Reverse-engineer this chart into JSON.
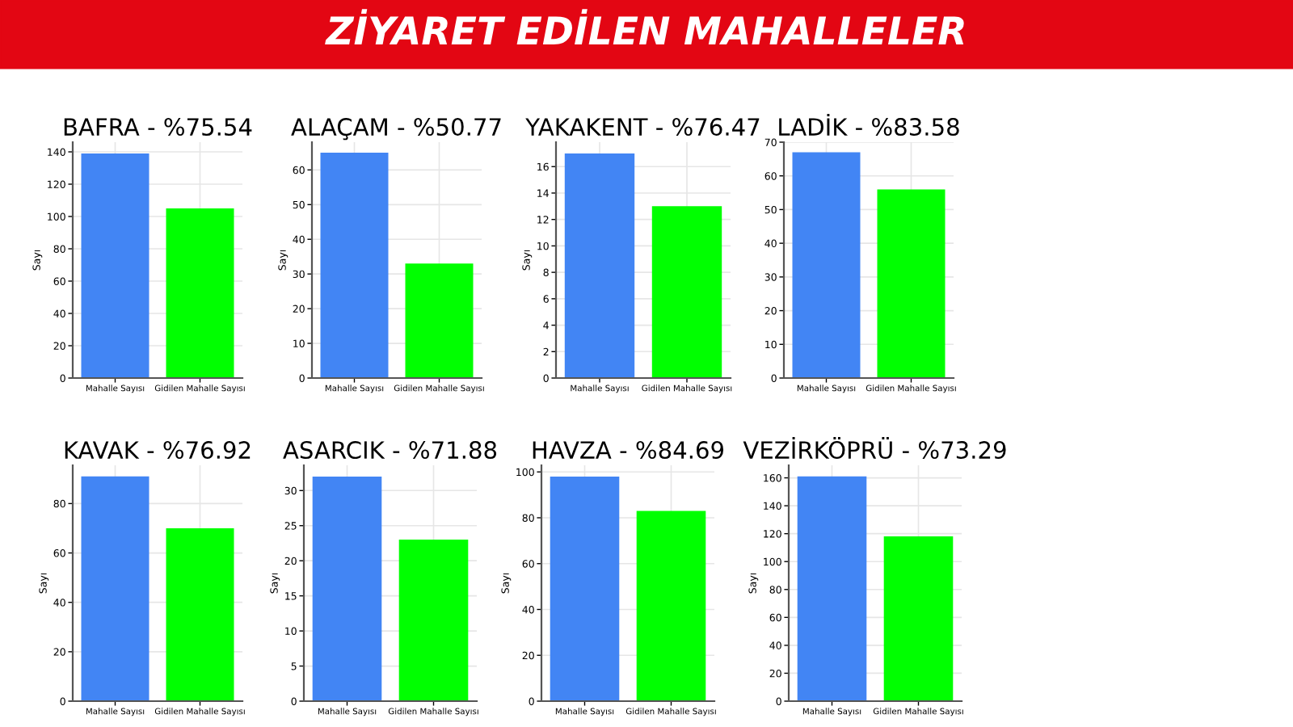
{
  "chart_data": [
    {
      "type": "bar",
      "title": "BAFRA - %75.54",
      "ylabel": "Sayı",
      "annotations": [
        "ZİYARET EDİLEN MAHALLELER"
      ],
      "categories": [
        "Mahalle Sayısı",
        "Gidilen Mahalle Sayısı"
      ],
      "values": [
        139,
        105
      ],
      "colors": [
        "#4285f4",
        "#00ff00"
      ],
      "ylim": [
        0,
        146
      ],
      "yticks": [
        0,
        20,
        40,
        60,
        80,
        100,
        120,
        140
      ],
      "grid": true
    },
    {
      "type": "bar",
      "title": "ALAÇAM - %50.77",
      "ylabel": "Sayı",
      "categories": [
        "Mahalle Sayısı",
        "Gidilen Mahalle Sayısı"
      ],
      "values": [
        65,
        33
      ],
      "colors": [
        "#4285f4",
        "#00ff00"
      ],
      "ylim": [
        0,
        68
      ],
      "yticks": [
        0,
        10,
        20,
        30,
        40,
        50,
        60
      ],
      "grid": true
    },
    {
      "type": "bar",
      "title": "YAKAKENT - %76.47",
      "ylabel": "Sayı",
      "categories": [
        "Mahalle Sayısı",
        "Gidilen Mahalle Sayısı"
      ],
      "values": [
        17,
        13
      ],
      "colors": [
        "#4285f4",
        "#00ff00"
      ],
      "ylim": [
        0,
        17.85
      ],
      "yticks": [
        0,
        2,
        4,
        6,
        8,
        10,
        12,
        14,
        16
      ],
      "grid": true
    },
    {
      "type": "bar",
      "title": "LADİK - %83.58",
      "categories": [
        "Mahalle Sayısı",
        "Gidilen Mahalle Sayısı"
      ],
      "values": [
        67,
        56
      ],
      "colors": [
        "#4285f4",
        "#00ff00"
      ],
      "ylim": [
        0,
        70
      ],
      "yticks": [
        0,
        10,
        20,
        30,
        40,
        50,
        60,
        70
      ],
      "grid": true
    },
    {
      "type": "bar",
      "title": "KAVAK - %76.92",
      "ylabel": "Sayı",
      "categories": [
        "Mahalle Sayısı",
        "Gidilen Mahalle Sayısı"
      ],
      "values": [
        91,
        70
      ],
      "colors": [
        "#4285f4",
        "#00ff00"
      ],
      "ylim": [
        0,
        95.5
      ],
      "yticks": [
        0,
        20,
        40,
        60,
        80
      ],
      "grid": true
    },
    {
      "type": "bar",
      "title": "ASARCIK - %71.88",
      "ylabel": "Sayı",
      "categories": [
        "Mahalle Sayısı",
        "Gidilen Mahalle Sayısı"
      ],
      "values": [
        32,
        23
      ],
      "colors": [
        "#4285f4",
        "#00ff00"
      ],
      "ylim": [
        0,
        33.6
      ],
      "yticks": [
        0,
        5,
        10,
        15,
        20,
        25,
        30
      ],
      "grid": true
    },
    {
      "type": "bar",
      "title": "HAVZA - %84.69",
      "ylabel": "Sayı",
      "categories": [
        "Mahalle Sayısı",
        "Gidilen Mahalle Sayısı"
      ],
      "values": [
        98,
        83
      ],
      "colors": [
        "#4285f4",
        "#00ff00"
      ],
      "ylim": [
        0,
        102.9
      ],
      "yticks": [
        0,
        20,
        40,
        60,
        80,
        100
      ],
      "grid": true
    },
    {
      "type": "bar",
      "title": "VEZİRKÖPRÜ - %73.29",
      "ylabel": "Sayı",
      "categories": [
        "Mahalle Sayısı",
        "Gidilen Mahalle Sayısı"
      ],
      "values": [
        161,
        118
      ],
      "colors": [
        "#4285f4",
        "#00ff00"
      ],
      "ylim": [
        0,
        169
      ],
      "yticks": [
        0,
        20,
        40,
        60,
        80,
        100,
        120,
        140,
        160
      ],
      "grid": true
    }
  ]
}
